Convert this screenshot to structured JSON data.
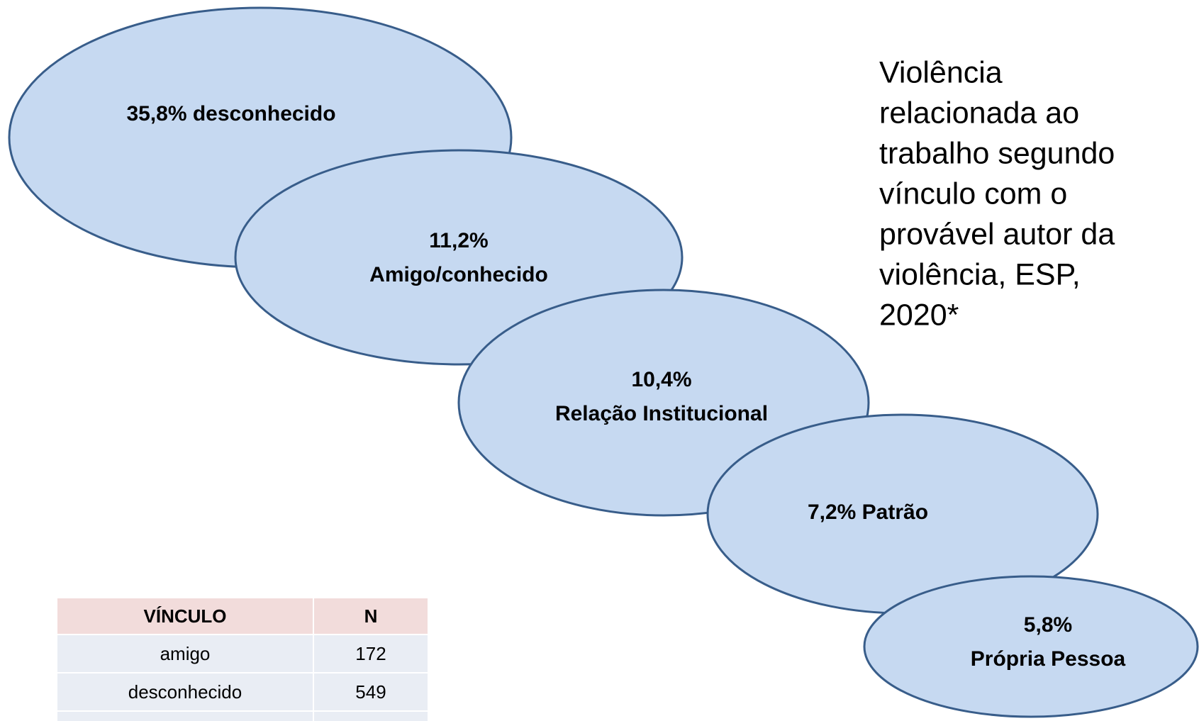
{
  "nodes": [
    {
      "lines": [
        "35,8% desconhecido"
      ]
    },
    {
      "lines": [
        "11,2%",
        "Amigo/conhecido"
      ]
    },
    {
      "lines": [
        "10,4%",
        "Relação Institucional"
      ]
    },
    {
      "lines": [
        "7,2% Patrão"
      ]
    },
    {
      "lines": [
        "5,8%",
        "Própria Pessoa"
      ]
    }
  ],
  "title": {
    "lines": [
      "Violência",
      "relacionada ao",
      "trabalho segundo",
      "vínculo com o",
      "provável autor da",
      "violência, ESP,",
      "2020*"
    ]
  },
  "table": {
    "header": [
      "VÍNCULO",
      "N"
    ],
    "rows": [
      [
        "amigo",
        "172"
      ],
      [
        "desconhecido",
        "549"
      ]
    ]
  }
}
